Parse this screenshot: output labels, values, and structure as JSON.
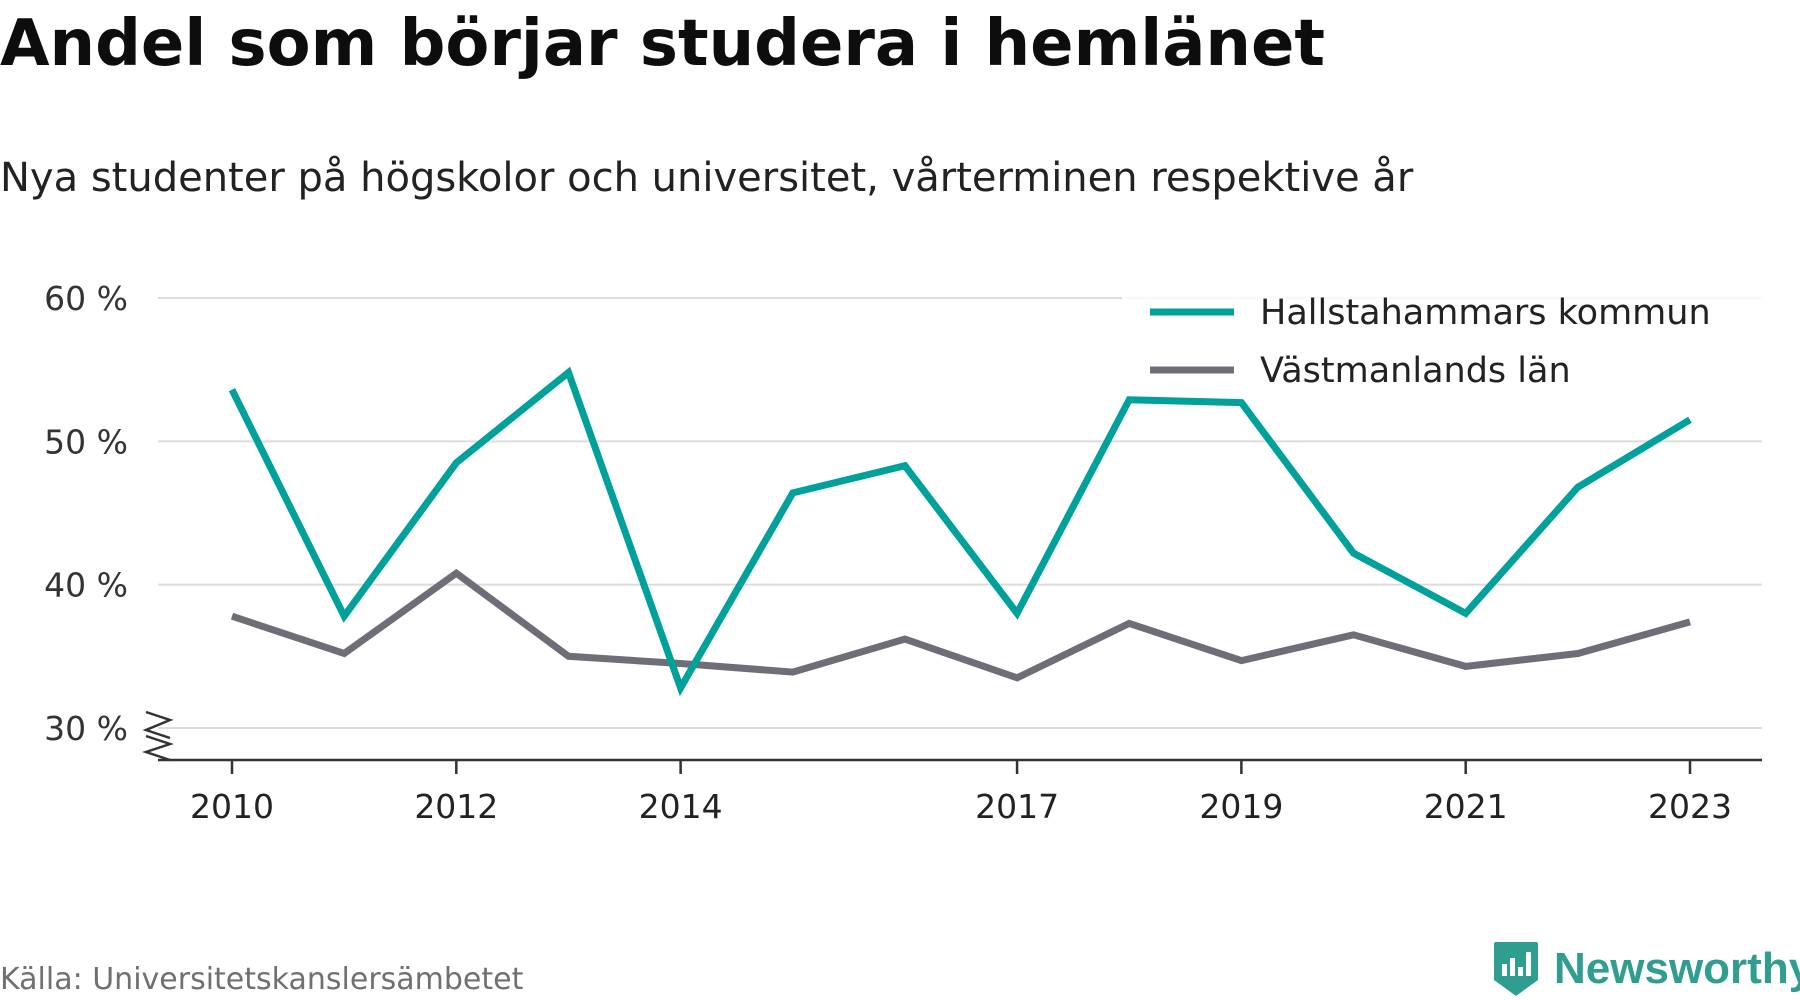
{
  "title": "Andel som börjar studera i hemlänet",
  "subtitle": "Nya studenter på högskolor och universitet, vårterminen respektive år",
  "source": "Källa: Universitetskanslersämbetet",
  "brand": {
    "name": "Newsworthy",
    "icon": "newsworthy-logo-icon",
    "color": "#2f9e90"
  },
  "chart_data": {
    "type": "line",
    "x": [
      2010,
      2011,
      2012,
      2013,
      2014,
      2015,
      2016,
      2017,
      2018,
      2019,
      2020,
      2021,
      2022,
      2023
    ],
    "x_tick_labels": [
      "2010",
      "2012",
      "2014",
      "2017",
      "2019",
      "2021",
      "2023"
    ],
    "y_tick_labels": [
      "30 %",
      "40 %",
      "50 %",
      "60 %"
    ],
    "y_ticks": [
      30,
      40,
      50,
      60
    ],
    "ylim": [
      28,
      62
    ],
    "y_axis_break": true,
    "grid": true,
    "legend_position": "top-right",
    "series": [
      {
        "name": "Hallstahammars kommun",
        "color": "#00a19a",
        "values": [
          53.6,
          37.8,
          48.5,
          54.8,
          32.8,
          46.4,
          48.3,
          38.0,
          52.9,
          52.7,
          42.2,
          38.0,
          46.8,
          51.5
        ]
      },
      {
        "name": "Västmanlands län",
        "color": "#6e6e78",
        "values": [
          37.8,
          35.2,
          40.8,
          35.0,
          34.5,
          33.9,
          36.2,
          33.5,
          37.3,
          34.7,
          36.5,
          34.3,
          35.2,
          37.4
        ]
      }
    ]
  }
}
